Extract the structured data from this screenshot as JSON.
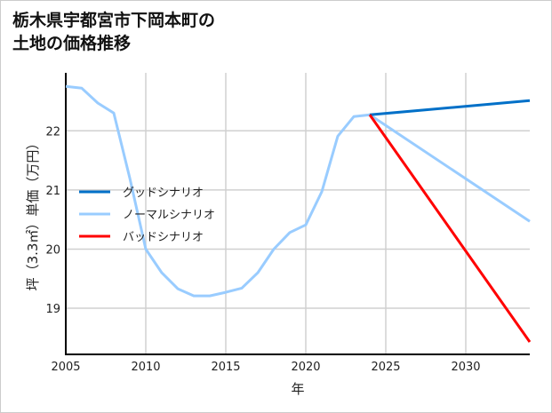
{
  "chart_data": {
    "type": "line",
    "title": "栃木県宇都宮市下岡本町の\n土地の価格推移",
    "xlabel": "年",
    "ylabel": "坪（3.3㎡）単価（万円）",
    "xlim": [
      2005,
      2034
    ],
    "ylim": [
      18.22,
      22.98
    ],
    "xticks": [
      2005,
      2010,
      2015,
      2020,
      2025,
      2030
    ],
    "yticks": [
      19,
      20,
      21,
      22
    ],
    "grid": true,
    "legend_position": "center-left",
    "series": [
      {
        "name": "グッドシナリオ",
        "color": "#0070c8",
        "x": [
          2024,
          2034
        ],
        "values": [
          22.27,
          22.51
        ]
      },
      {
        "name": "ノーマルシナリオ",
        "color": "#99ccff",
        "x": [
          2005,
          2006,
          2007,
          2008,
          2009,
          2010,
          2011,
          2012,
          2013,
          2014,
          2015,
          2016,
          2017,
          2018,
          2019,
          2020,
          2021,
          2022,
          2023,
          2024,
          2034
        ],
        "values": [
          22.75,
          22.72,
          22.47,
          22.3,
          21.2,
          20.0,
          19.6,
          19.33,
          19.21,
          19.21,
          19.27,
          19.34,
          19.6,
          20.0,
          20.28,
          20.41,
          20.97,
          21.91,
          22.24,
          22.27,
          20.47
        ]
      },
      {
        "name": "バッドシナリオ",
        "color": "#ff0000",
        "x": [
          2024,
          2034
        ],
        "values": [
          22.27,
          18.43
        ]
      }
    ]
  }
}
